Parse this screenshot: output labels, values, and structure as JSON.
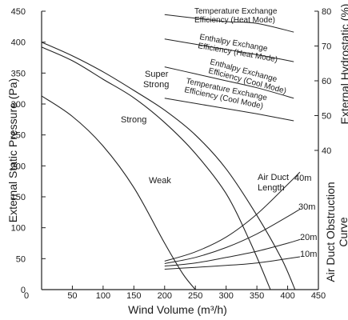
{
  "chart_data": {
    "type": "line",
    "title": "",
    "xlabel": "Wind Volume (m³/h)",
    "ylabel_left": "External Static Pressure (Pa)",
    "ylabel_right_main": "External Hydrostatic (%)",
    "ylabel_right_lower": [
      "Air Duct Obstruction",
      "Curve"
    ],
    "xlim": [
      0,
      450
    ],
    "ylim": [
      0,
      450
    ],
    "ylim_right": [
      0,
      80
    ],
    "x_ticks": [
      "0",
      "50",
      "100",
      "150",
      "200",
      "250",
      "300",
      "350",
      "400",
      "450"
    ],
    "y_ticks": [
      "0",
      "50",
      "100",
      "150",
      "200",
      "250",
      "300",
      "350",
      "400",
      "450"
    ],
    "y_ticks_right": [
      "40",
      "50",
      "60",
      "70",
      "80"
    ],
    "grid": false,
    "pressure_curves": [
      {
        "name": "Weak",
        "x": [
          0,
          50,
          100,
          150,
          200,
          230,
          250
        ],
        "y": [
          313,
          280,
          232,
          165,
          75,
          25,
          0
        ]
      },
      {
        "name": "Strong",
        "x": [
          0,
          50,
          100,
          150,
          200,
          250,
          300,
          340,
          372
        ],
        "y": [
          392,
          370,
          340,
          310,
          270,
          220,
          155,
          75,
          0
        ]
      },
      {
        "name": "Super Strong",
        "x": [
          0,
          50,
          100,
          150,
          200,
          250,
          300,
          350,
          390,
          412
        ],
        "y": [
          400,
          378,
          352,
          322,
          290,
          250,
          195,
          120,
          50,
          0
        ]
      }
    ],
    "pressure_labels": [
      "Weak",
      "Strong",
      "Super",
      "Strong"
    ],
    "efficiency_curves": [
      {
        "name_lines": [
          "Temperature Exchange",
          "Efficiency (Heat Mode)"
        ],
        "x": [
          200,
          250,
          300,
          350,
          410
        ],
        "y_percent": [
          79,
          78,
          77,
          76.5,
          74
        ]
      },
      {
        "name_lines": [
          "Enthalpy Exchange",
          "Efficiency (Heat Mode)"
        ],
        "x": [
          200,
          250,
          300,
          350,
          410
        ],
        "y_percent": [
          72,
          70.5,
          69,
          67.5,
          65.5
        ]
      },
      {
        "name_lines": [
          "Enthalpy Exchange",
          "Efficiency (Cool Mode)"
        ],
        "x": [
          200,
          250,
          300,
          350,
          410
        ],
        "y_percent": [
          64,
          62,
          60,
          58,
          55
        ]
      },
      {
        "name_lines": [
          "Temperature Exchange",
          "Efficiency (Cool Mode)"
        ],
        "x": [
          200,
          250,
          300,
          350,
          410
        ],
        "y_percent": [
          55,
          53.5,
          52,
          50.5,
          48.5
        ]
      }
    ],
    "duct_curves": [
      {
        "name": "10m",
        "x": [
          200,
          250,
          300,
          350,
          400,
          420
        ],
        "y": [
          33,
          36,
          39,
          43,
          50,
          53
        ]
      },
      {
        "name": "20m",
        "x": [
          200,
          250,
          300,
          350,
          400,
          420
        ],
        "y": [
          38,
          43,
          52,
          62,
          75,
          81
        ]
      },
      {
        "name": "30m",
        "x": [
          200,
          250,
          300,
          350,
          400,
          420
        ],
        "y": [
          42,
          52,
          68,
          90,
          118,
          130
        ]
      },
      {
        "name": "40m",
        "x": [
          200,
          250,
          300,
          350,
          400,
          420
        ],
        "y": [
          46,
          61,
          85,
          122,
          170,
          190
        ]
      }
    ],
    "duct_length_label": [
      "Air Duct",
      "Length"
    ]
  }
}
